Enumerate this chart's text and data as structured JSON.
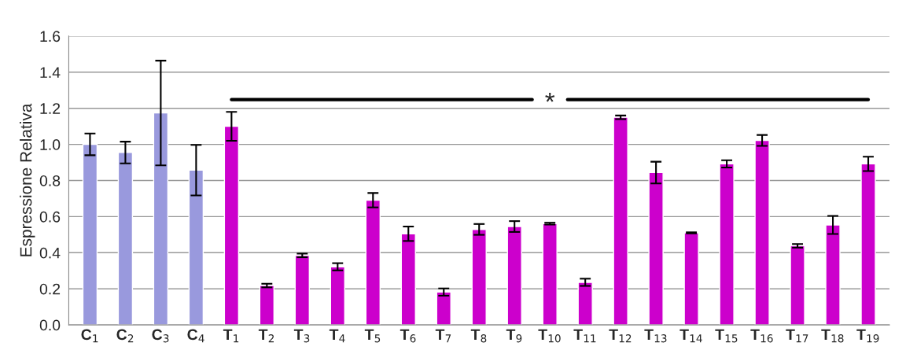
{
  "chart_data": {
    "type": "bar",
    "ylabel": "Espressione Relativa",
    "categories": [
      "C$_{1}$",
      "C$_{2}$",
      "C$_{3}$",
      "C$_{4}$",
      "T$_{1}$",
      "T$_{2}$",
      "T$_{3}$",
      "T$_{4}$",
      "T$_{5}$",
      "T$_{6}$",
      "T$_{7}$",
      "T$_{8}$",
      "T$_{9}$",
      "T$_{10}$",
      "T$_{11}$",
      "T$_{12}$",
      "T$_{13}$",
      "T$_{14}$",
      "T$_{15}$",
      "T$_{16}$",
      "T$_{17}$",
      "T$_{18}$",
      "T$_{19}$"
    ],
    "values": [
      1.0,
      0.955,
      1.174,
      0.857,
      1.1,
      0.218,
      0.385,
      0.322,
      0.691,
      0.505,
      0.182,
      0.529,
      0.545,
      0.561,
      0.236,
      1.15,
      0.844,
      0.51,
      0.892,
      1.022,
      0.438,
      0.554,
      0.892
    ],
    "errors": [
      0.06,
      0.06,
      0.29,
      0.14,
      0.08,
      0.01,
      0.01,
      0.02,
      0.04,
      0.04,
      0.02,
      0.03,
      0.03,
      0.005,
      0.02,
      0.01,
      0.06,
      0.003,
      0.02,
      0.03,
      0.01,
      0.05,
      0.04
    ],
    "colors": [
      "#9999dd",
      "#9999dd",
      "#9999dd",
      "#9999dd",
      "#cc00cc",
      "#cc00cc",
      "#cc00cc",
      "#cc00cc",
      "#cc00cc",
      "#cc00cc",
      "#cc00cc",
      "#cc00cc",
      "#cc00cc",
      "#cc00cc",
      "#cc00cc",
      "#cc00cc",
      "#cc00cc",
      "#cc00cc",
      "#cc00cc",
      "#cc00cc",
      "#cc00cc",
      "#cc00cc",
      "#cc00cc"
    ],
    "ylim": [
      0,
      1.6
    ],
    "yticks": [
      {
        "value": 0,
        "label": "0.0"
      },
      {
        "value": 0.2,
        "label": "0.2"
      },
      {
        "value": 0.4,
        "label": "0.4"
      },
      {
        "value": 0.6,
        "label": "0.6"
      },
      {
        "value": 0.8,
        "label": "0.8"
      },
      {
        "value": 1.0,
        "label": "1.0"
      },
      {
        "value": 1.2,
        "label": "1.2"
      },
      {
        "value": 1.4,
        "label": "1.4"
      },
      {
        "value": 1.6,
        "label": "1.6"
      }
    ],
    "grid": "y",
    "annotations": [
      "*"
    ]
  }
}
